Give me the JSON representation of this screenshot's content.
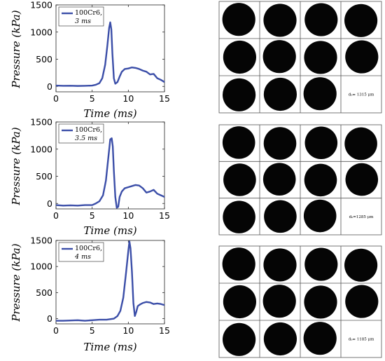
{
  "chart_data": [
    {
      "type": "line",
      "xlabel": "Time (ms)",
      "ylabel": "Pressure (kPa)",
      "xlim": [
        0,
        15
      ],
      "ylim": [
        -100,
        1500
      ],
      "xticks": [
        "0",
        "5",
        "10",
        "15"
      ],
      "yticks": [
        "0",
        "500",
        "1000",
        "1500"
      ],
      "legend": {
        "placement": "top-left",
        "line1": "100Cr6,",
        "line2": "3 ms"
      },
      "series": [
        {
          "color": "#3b4ea8",
          "x": [
            0,
            1,
            2,
            3,
            4,
            5,
            5.5,
            6.0,
            6.4,
            6.8,
            7.1,
            7.35,
            7.5,
            7.65,
            7.8,
            8.0,
            8.2,
            8.5,
            8.8,
            9.1,
            9.5,
            10.0,
            10.5,
            11.0,
            11.5,
            12.0,
            12.5,
            13.0,
            13.5,
            14.0,
            14.5,
            15.0
          ],
          "y": [
            15,
            10,
            12,
            8,
            10,
            15,
            30,
            60,
            150,
            400,
            750,
            1080,
            1180,
            1050,
            600,
            150,
            50,
            80,
            180,
            270,
            320,
            330,
            350,
            340,
            320,
            290,
            270,
            220,
            230,
            150,
            120,
            80
          ]
        }
      ],
      "panel": {
        "rows": 3,
        "cols": 4,
        "particles": [
          11,
          11,
          11,
          11,
          11,
          11,
          11,
          11,
          11,
          11,
          11
        ],
        "note": "d₀= 1315 μm"
      }
    },
    {
      "type": "line",
      "xlabel": "Time (ms)",
      "ylabel": "Pressure (kPa)",
      "xlim": [
        0,
        15
      ],
      "ylim": [
        -100,
        1500
      ],
      "xticks": [
        "0",
        "5",
        "10",
        "15"
      ],
      "yticks": [
        "0",
        "500",
        "1000",
        "1500"
      ],
      "legend": {
        "placement": "top-left",
        "line1": "100Cr6,",
        "line2": "3.5 ms"
      },
      "series": [
        {
          "color": "#3b4ea8",
          "x": [
            0,
            1,
            2,
            3,
            4,
            5,
            5.5,
            6.0,
            6.5,
            6.9,
            7.2,
            7.5,
            7.7,
            7.85,
            8.0,
            8.2,
            8.4,
            8.6,
            8.8,
            9.1,
            9.5,
            10.0,
            10.5,
            11.0,
            11.5,
            12.0,
            12.5,
            13.0,
            13.5,
            14.0,
            14.5,
            15.0
          ],
          "y": [
            -30,
            -40,
            -35,
            -40,
            -30,
            -30,
            0,
            40,
            150,
            420,
            800,
            1180,
            1200,
            1050,
            600,
            120,
            -80,
            -60,
            120,
            220,
            280,
            300,
            320,
            340,
            330,
            280,
            200,
            220,
            250,
            180,
            150,
            120
          ]
        }
      ],
      "panel": {
        "rows": 3,
        "cols": 4,
        "particles": [
          11,
          11,
          11,
          11,
          11,
          11,
          11,
          11,
          11,
          11,
          11
        ],
        "note": "d₀=1285 μm"
      }
    },
    {
      "type": "line",
      "xlabel": "Time (ms)",
      "ylabel": "Pressure (kPa)",
      "xlim": [
        0,
        15
      ],
      "ylim": [
        -100,
        1500
      ],
      "xticks": [
        "0",
        "5",
        "10",
        "15"
      ],
      "yticks": [
        "0",
        "500",
        "1000",
        "1500"
      ],
      "legend": {
        "placement": "top-left",
        "line1": "100Cr6,",
        "line2": "4 ms"
      },
      "series": [
        {
          "color": "#3b4ea8",
          "x": [
            0,
            1,
            2,
            3,
            4,
            5,
            6,
            7,
            7.5,
            8.0,
            8.5,
            8.9,
            9.3,
            9.7,
            10.0,
            10.15,
            10.3,
            10.5,
            10.7,
            10.9,
            11.1,
            11.3,
            11.6,
            12.0,
            12.5,
            13.0,
            13.5,
            14.0,
            14.5,
            15.0
          ],
          "y": [
            -40,
            -40,
            -35,
            -30,
            -40,
            -30,
            -20,
            -20,
            -10,
            0,
            50,
            150,
            400,
            900,
            1300,
            1480,
            1350,
            900,
            300,
            50,
            130,
            240,
            270,
            300,
            320,
            310,
            280,
            290,
            280,
            260
          ]
        }
      ],
      "panel": {
        "rows": 3,
        "cols": 4,
        "particles": [
          11,
          11,
          11,
          11,
          11,
          11,
          11,
          11,
          11,
          11,
          11
        ],
        "note": "d₀= 1185 μm"
      }
    }
  ]
}
